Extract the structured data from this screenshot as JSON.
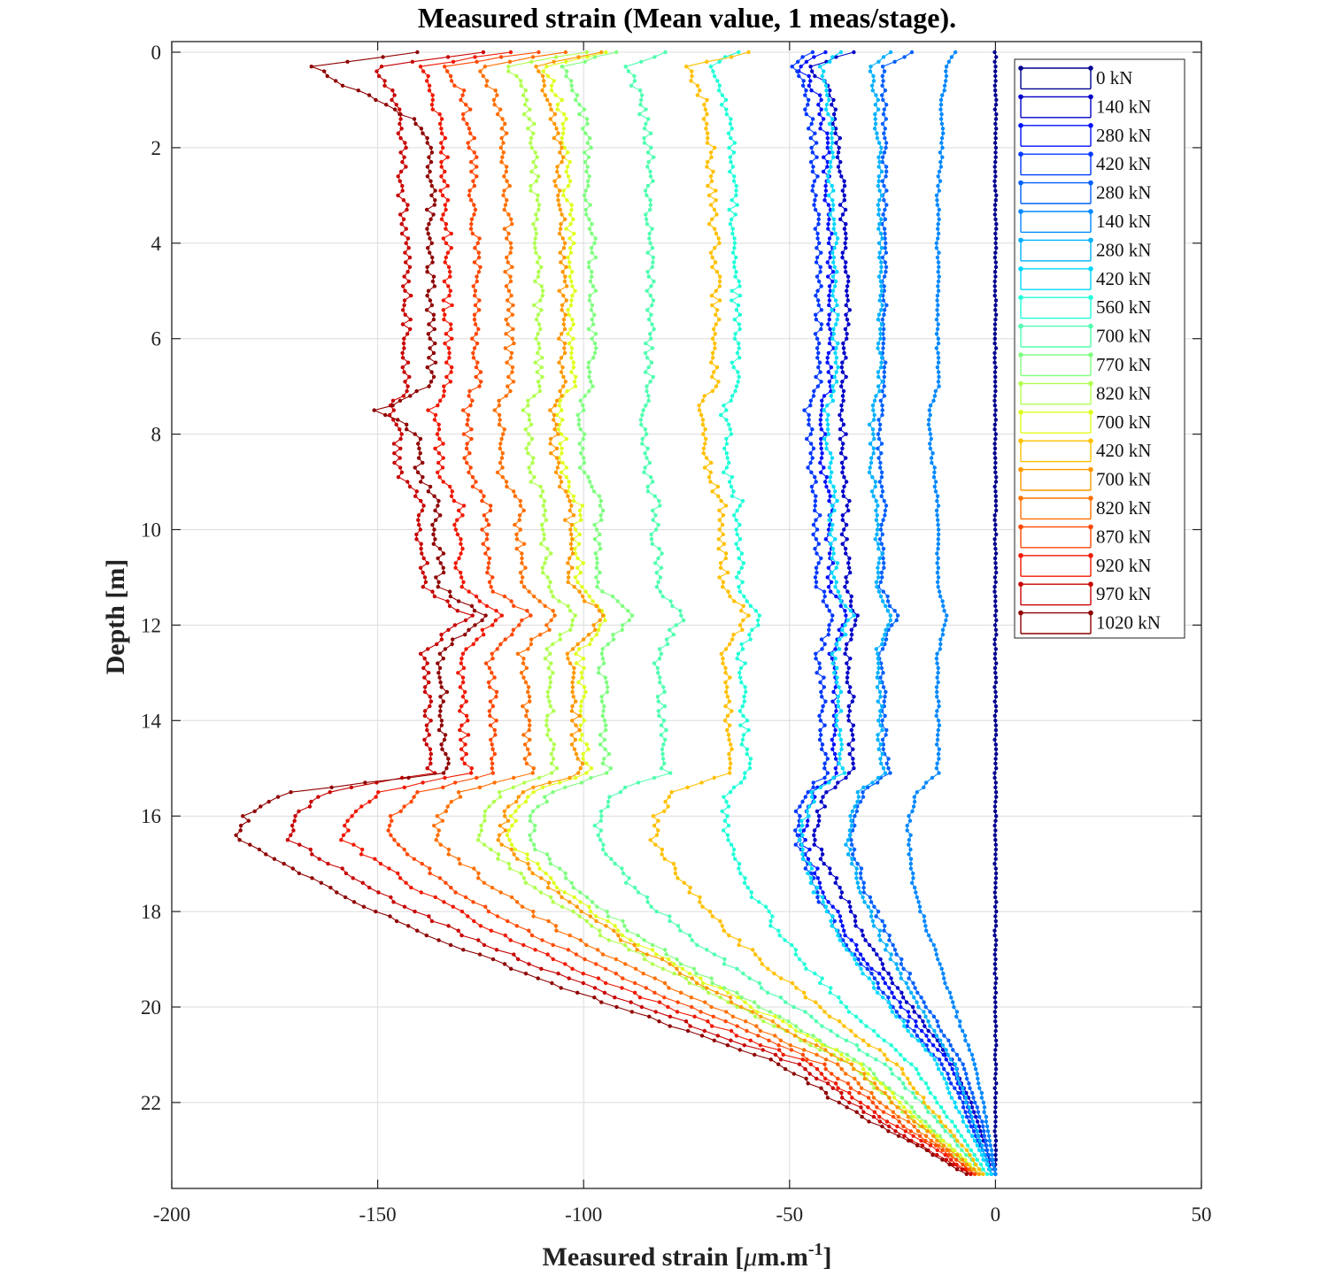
{
  "chart_data": {
    "type": "line",
    "title": "Measured strain (Mean value, 1 meas/stage).",
    "xlabel_main": "Measured strain [",
    "xlabel_mu": "μ",
    "xlabel_unit": "m.m",
    "xlabel_exp": "-1",
    "xlabel_end": "]",
    "ylabel": "Depth [m]",
    "xlim": [
      -200,
      50
    ],
    "ylim": [
      0,
      23.8
    ],
    "y_reversed": true,
    "grid": true,
    "legend_position": "top-right",
    "x_ticks": [
      -200,
      -150,
      -100,
      -50,
      0,
      50
    ],
    "x_tick_labels": [
      "-200",
      "-150",
      "-100",
      "-50",
      "0",
      "50"
    ],
    "y_ticks": [
      0,
      2,
      4,
      6,
      8,
      10,
      12,
      14,
      16,
      18,
      20,
      22
    ],
    "y_tick_labels": [
      "0",
      "2",
      "4",
      "6",
      "8",
      "10",
      "12",
      "14",
      "16",
      "18",
      "20",
      "22"
    ],
    "profile_depths": [
      0,
      0.3,
      0.6,
      1.0,
      1.5,
      2.0,
      3.0,
      4.0,
      4.6,
      5.5,
      6.5,
      7.0,
      7.5,
      8.0,
      8.8,
      9.5,
      10.0,
      10.5,
      11.2,
      11.8,
      12.6,
      13.5,
      14.5,
      15.1,
      15.5,
      16.0,
      16.5,
      17.5,
      18.5,
      19.5,
      20.5,
      21.2,
      22.0,
      22.5,
      23.0,
      23.5
    ],
    "series": [
      {
        "name": "0 kN",
        "color": "#00008f",
        "values": [
          0,
          0,
          0,
          0,
          0,
          0,
          0,
          0,
          0,
          0,
          0,
          0,
          0,
          0,
          0,
          0,
          0,
          0,
          0,
          0,
          0,
          0,
          0,
          0,
          0,
          0,
          0,
          0,
          0,
          0,
          0,
          0,
          0,
          0,
          0,
          0
        ]
      },
      {
        "name": "140 kN",
        "color": "#0000c8",
        "values": [
          -35,
          -45,
          -42,
          -40,
          -39,
          -38,
          -37,
          -37,
          -36,
          -36,
          -37,
          -37,
          -38,
          -37,
          -37,
          -36,
          -37,
          -36,
          -36,
          -34,
          -36,
          -35,
          -35,
          -35,
          -41,
          -43,
          -44,
          -38,
          -32,
          -25,
          -16,
          -10,
          -6,
          -4,
          -2,
          -1
        ]
      },
      {
        "name": "280 kN",
        "color": "#0010ff",
        "values": [
          -42,
          -48,
          -45,
          -43,
          -42,
          -41,
          -41,
          -40,
          -40,
          -40,
          -40,
          -40,
          -43,
          -42,
          -42,
          -40,
          -41,
          -40,
          -40,
          -36,
          -40,
          -39,
          -39,
          -38,
          -44,
          -46,
          -47,
          -42,
          -36,
          -27,
          -18,
          -11,
          -7,
          -5,
          -3,
          -1
        ]
      },
      {
        "name": "420 kN",
        "color": "#0038ff",
        "values": [
          -45,
          -49,
          -47,
          -46,
          -45,
          -44,
          -44,
          -43,
          -43,
          -43,
          -43,
          -43,
          -46,
          -45,
          -45,
          -43,
          -44,
          -43,
          -43,
          -39,
          -43,
          -42,
          -42,
          -41,
          -46,
          -48,
          -48,
          -44,
          -38,
          -29,
          -20,
          -13,
          -8,
          -6,
          -3,
          -1
        ]
      },
      {
        "name": "280 kN",
        "color": "#0060ff",
        "values": [
          -20,
          -27,
          -27,
          -27,
          -27,
          -27,
          -27,
          -27,
          -27,
          -27,
          -27,
          -27,
          -28,
          -28,
          -28,
          -27,
          -28,
          -27,
          -28,
          -24,
          -28,
          -27,
          -27,
          -26,
          -32,
          -34,
          -35,
          -32,
          -26,
          -20,
          -13,
          -8,
          -5,
          -3,
          -2,
          0
        ]
      },
      {
        "name": "140 kN",
        "color": "#0088ff",
        "values": [
          -10,
          -12,
          -12,
          -13,
          -13,
          -13,
          -14,
          -14,
          -14,
          -14,
          -14,
          -14,
          -16,
          -16,
          -15,
          -14,
          -14,
          -14,
          -14,
          -12,
          -14,
          -14,
          -14,
          -14,
          -19,
          -21,
          -21,
          -20,
          -16,
          -12,
          -8,
          -5,
          -3,
          -2,
          -1,
          0
        ]
      },
      {
        "name": "280 kN",
        "color": "#00b0ff",
        "values": [
          -25,
          -30,
          -30,
          -29,
          -29,
          -28,
          -28,
          -28,
          -28,
          -28,
          -28,
          -28,
          -30,
          -30,
          -30,
          -29,
          -29,
          -28,
          -29,
          -25,
          -29,
          -28,
          -28,
          -27,
          -33,
          -35,
          -36,
          -33,
          -28,
          -22,
          -15,
          -10,
          -7,
          -5,
          -3,
          -1
        ]
      },
      {
        "name": "420 kN",
        "color": "#00d8ff",
        "values": [
          -38,
          -42,
          -41,
          -41,
          -40,
          -40,
          -40,
          -39,
          -39,
          -39,
          -39,
          -39,
          -41,
          -41,
          -40,
          -39,
          -40,
          -39,
          -39,
          -35,
          -39,
          -38,
          -38,
          -37,
          -44,
          -46,
          -47,
          -44,
          -38,
          -30,
          -21,
          -14,
          -10,
          -7,
          -4,
          -1
        ]
      },
      {
        "name": "560 kN",
        "color": "#20ffd8",
        "values": [
          -62,
          -70,
          -68,
          -66,
          -65,
          -64,
          -64,
          -63,
          -63,
          -63,
          -63,
          -63,
          -66,
          -65,
          -65,
          -62,
          -63,
          -62,
          -62,
          -57,
          -62,
          -61,
          -61,
          -60,
          -65,
          -66,
          -65,
          -60,
          -52,
          -42,
          -30,
          -20,
          -14,
          -10,
          -6,
          -2
        ]
      },
      {
        "name": "700 kN",
        "color": "#50ffb0",
        "values": [
          -80,
          -90,
          -88,
          -86,
          -85,
          -84,
          -84,
          -84,
          -84,
          -84,
          -84,
          -84,
          -86,
          -85,
          -85,
          -82,
          -83,
          -82,
          -82,
          -76,
          -82,
          -81,
          -81,
          -80,
          -92,
          -96,
          -97,
          -88,
          -75,
          -58,
          -40,
          -27,
          -18,
          -13,
          -8,
          -3
        ]
      },
      {
        "name": "770 kN",
        "color": "#80ff80",
        "values": [
          -92,
          -105,
          -103,
          -101,
          -100,
          -99,
          -99,
          -98,
          -98,
          -98,
          -98,
          -98,
          -101,
          -100,
          -100,
          -96,
          -97,
          -96,
          -96,
          -89,
          -96,
          -95,
          -95,
          -94,
          -108,
          -112,
          -113,
          -102,
          -87,
          -68,
          -47,
          -32,
          -22,
          -16,
          -10,
          -4
        ]
      },
      {
        "name": "820 kN",
        "color": "#b0ff50",
        "values": [
          -100,
          -118,
          -116,
          -114,
          -113,
          -112,
          -112,
          -111,
          -111,
          -111,
          -111,
          -111,
          -114,
          -113,
          -113,
          -109,
          -110,
          -109,
          -109,
          -101,
          -109,
          -108,
          -108,
          -107,
          -120,
          -124,
          -125,
          -112,
          -95,
          -74,
          -51,
          -35,
          -25,
          -18,
          -11,
          -4
        ]
      },
      {
        "name": "700 kN",
        "color": "#e0ff20",
        "values": [
          -95,
          -110,
          -108,
          -106,
          -105,
          -104,
          -104,
          -103,
          -103,
          -103,
          -103,
          -103,
          -106,
          -105,
          -105,
          -101,
          -102,
          -101,
          -101,
          -94,
          -101,
          -100,
          -100,
          -99,
          -113,
          -117,
          -118,
          -106,
          -90,
          -70,
          -48,
          -33,
          -23,
          -17,
          -10,
          -4
        ]
      },
      {
        "name": "420 kN",
        "color": "#ffc000",
        "values": [
          -60,
          -75,
          -73,
          -71,
          -70,
          -69,
          -69,
          -68,
          -68,
          -68,
          -68,
          -68,
          -72,
          -70,
          -70,
          -66,
          -67,
          -66,
          -66,
          -60,
          -66,
          -65,
          -65,
          -64,
          -78,
          -82,
          -83,
          -75,
          -64,
          -50,
          -35,
          -24,
          -17,
          -12,
          -7,
          -3
        ]
      },
      {
        "name": "700 kN",
        "color": "#ff9800",
        "values": [
          -95,
          -112,
          -110,
          -108,
          -107,
          -106,
          -106,
          -105,
          -105,
          -105,
          -105,
          -105,
          -108,
          -107,
          -107,
          -103,
          -104,
          -103,
          -103,
          -95,
          -103,
          -102,
          -102,
          -101,
          -115,
          -119,
          -120,
          -108,
          -92,
          -72,
          -50,
          -35,
          -25,
          -18,
          -11,
          -4
        ]
      },
      {
        "name": "820 kN",
        "color": "#ff7000",
        "values": [
          -105,
          -125,
          -123,
          -121,
          -120,
          -119,
          -119,
          -118,
          -118,
          -118,
          -118,
          -118,
          -121,
          -120,
          -120,
          -115,
          -116,
          -115,
          -115,
          -106,
          -115,
          -114,
          -114,
          -113,
          -130,
          -135,
          -136,
          -122,
          -104,
          -81,
          -56,
          -39,
          -28,
          -20,
          -12,
          -5
        ]
      },
      {
        "name": "870 kN",
        "color": "#ff4800",
        "values": [
          -112,
          -133,
          -131,
          -129,
          -128,
          -127,
          -127,
          -126,
          -126,
          -126,
          -126,
          -126,
          -129,
          -128,
          -128,
          -123,
          -124,
          -123,
          -123,
          -113,
          -123,
          -122,
          -122,
          -121,
          -140,
          -146,
          -147,
          -132,
          -112,
          -88,
          -61,
          -42,
          -30,
          -22,
          -13,
          -5
        ]
      },
      {
        "name": "920 kN",
        "color": "#f01800",
        "values": [
          -118,
          -140,
          -138,
          -136,
          -135,
          -134,
          -134,
          -133,
          -133,
          -133,
          -133,
          -133,
          -137,
          -135,
          -135,
          -130,
          -131,
          -130,
          -130,
          -120,
          -130,
          -129,
          -129,
          -128,
          -150,
          -157,
          -158,
          -141,
          -120,
          -94,
          -65,
          -45,
          -33,
          -24,
          -14,
          -6
        ]
      },
      {
        "name": "970 kN",
        "color": "#c80000",
        "values": [
          -125,
          -150,
          -148,
          -146,
          -145,
          -144,
          -144,
          -143,
          -143,
          -143,
          -143,
          -143,
          -147,
          -145,
          -145,
          -139,
          -140,
          -139,
          -139,
          -128,
          -139,
          -138,
          -138,
          -137,
          -162,
          -170,
          -171,
          -152,
          -129,
          -101,
          -70,
          -48,
          -35,
          -26,
          -16,
          -6
        ]
      },
      {
        "name": "1020 kN",
        "color": "#8f0000",
        "values": [
          -140,
          -165,
          -160,
          -150,
          -140,
          -138,
          -137,
          -137,
          -137,
          -137,
          -137,
          -137,
          -150,
          -140,
          -140,
          -135,
          -136,
          -135,
          -135,
          -124,
          -135,
          -134,
          -134,
          -133,
          -172,
          -182,
          -184,
          -162,
          -138,
          -108,
          -75,
          -52,
          -38,
          -28,
          -17,
          -7
        ]
      }
    ]
  }
}
